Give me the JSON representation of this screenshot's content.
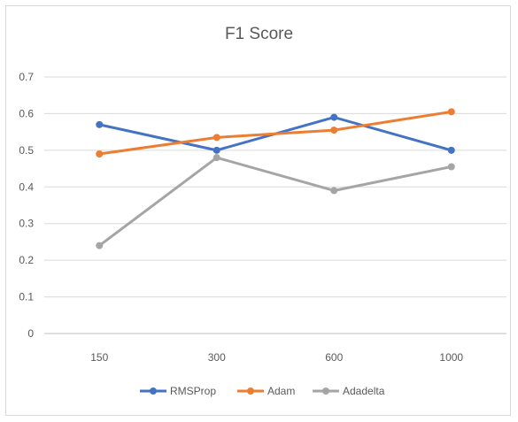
{
  "chart_data": {
    "type": "line",
    "title": "F1 Score",
    "xlabel": "",
    "ylabel": "",
    "categories": [
      "150",
      "300",
      "600",
      "1000"
    ],
    "ylim": [
      0,
      0.7
    ],
    "yticks": [
      "0",
      "0.1",
      "0.2",
      "0.3",
      "0.4",
      "0.5",
      "0.6",
      "0.7"
    ],
    "grid": true,
    "legend_position": "bottom",
    "series": [
      {
        "name": "RMSProp",
        "color": "#4472c4",
        "values": [
          0.57,
          0.5,
          0.59,
          0.5
        ]
      },
      {
        "name": "Adam",
        "color": "#ed7d31",
        "values": [
          0.49,
          0.535,
          0.555,
          0.605
        ]
      },
      {
        "name": "Adadelta",
        "color": "#a5a5a5",
        "values": [
          0.24,
          0.48,
          0.39,
          0.455
        ]
      }
    ]
  }
}
